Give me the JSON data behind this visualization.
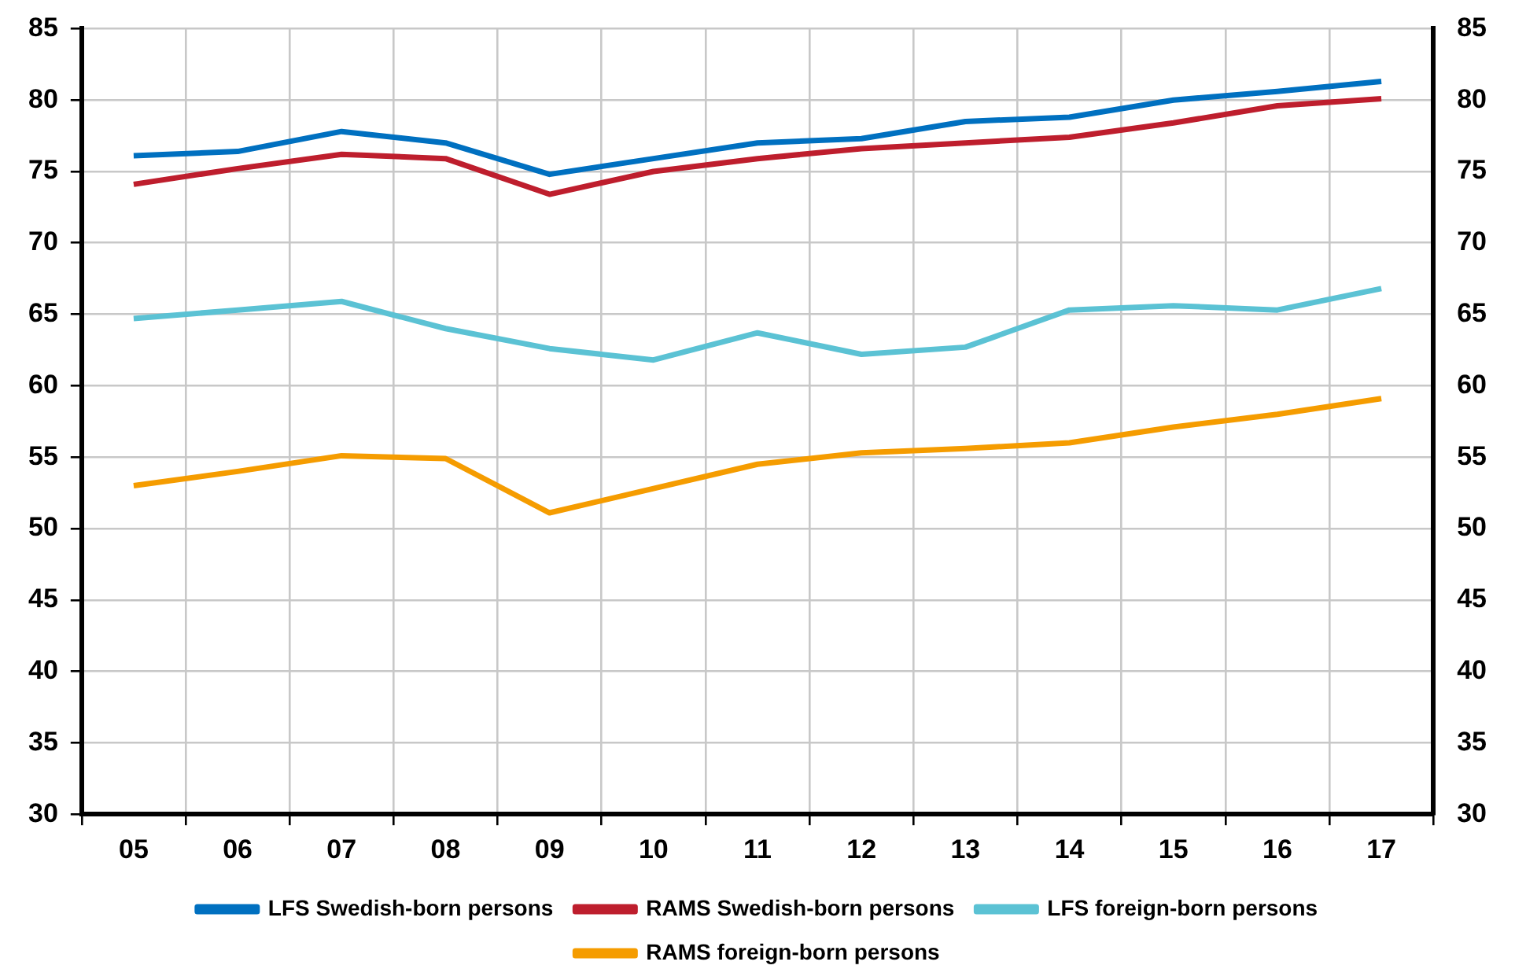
{
  "chart_data": {
    "type": "line",
    "categories": [
      "05",
      "06",
      "07",
      "08",
      "09",
      "10",
      "11",
      "12",
      "13",
      "14",
      "15",
      "16",
      "17"
    ],
    "series": [
      {
        "name": "LFS Swedish-born persons",
        "color": "#0070c0",
        "values": [
          76.1,
          76.4,
          77.8,
          77.0,
          74.8,
          75.9,
          77.0,
          77.3,
          78.5,
          78.8,
          80.0,
          80.6,
          81.3
        ]
      },
      {
        "name": "RAMS Swedish-born persons",
        "color": "#be1e2d",
        "values": [
          74.1,
          75.2,
          76.2,
          75.9,
          73.4,
          75.0,
          75.9,
          76.6,
          77.0,
          77.4,
          78.4,
          79.6,
          80.1
        ]
      },
      {
        "name": "LFS foreign-born persons",
        "color": "#5bc2d4",
        "values": [
          64.7,
          65.3,
          65.9,
          64.0,
          62.6,
          61.8,
          63.7,
          62.2,
          62.7,
          65.3,
          65.6,
          65.3,
          66.8
        ]
      },
      {
        "name": "RAMS foreign-born persons",
        "color": "#f59c00",
        "values": [
          53.0,
          54.0,
          55.1,
          54.9,
          51.1,
          52.8,
          54.5,
          55.3,
          55.6,
          56.0,
          57.1,
          58.0,
          59.1
        ]
      }
    ],
    "ylim": [
      30,
      85
    ],
    "yticks": [
      30,
      35,
      40,
      45,
      50,
      55,
      60,
      65,
      70,
      75,
      80,
      85
    ],
    "y2lim": [
      30,
      85
    ],
    "y2ticks": [
      30,
      35,
      40,
      45,
      50,
      55,
      60,
      65,
      70,
      75,
      80,
      85
    ],
    "grid": true,
    "legend": "bottom",
    "marker": "none",
    "line_style": "solid"
  }
}
